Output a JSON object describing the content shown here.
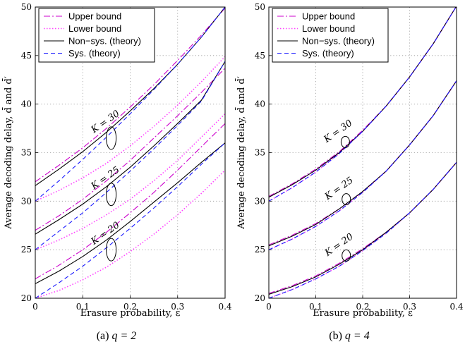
{
  "chart_data": [
    {
      "type": "line",
      "caption": "(a) q = 2",
      "caption_prefix": "(a)",
      "caption_math": "q = 2",
      "xlabel": "Erasure probability, ε",
      "ylabel": "Average decoding delay, d̄ and d̄′",
      "xlim": [
        0,
        0.4
      ],
      "ylim": [
        20,
        50
      ],
      "xticks": [
        "0",
        "0.1",
        "0.2",
        "0.3",
        "0.4"
      ],
      "yticks": [
        "20",
        "25",
        "30",
        "35",
        "40",
        "45",
        "50"
      ],
      "grid": true,
      "legend_position": "top-left",
      "legend": [
        "Upper bound",
        "Lower bound",
        "Non−sys. (theory)",
        "Sys. (theory)"
      ],
      "x": [
        0,
        0.05,
        0.1,
        0.15,
        0.2,
        0.25,
        0.3,
        0.35,
        0.4
      ],
      "groups": [
        {
          "label": "K = 20",
          "label_x": 0.16,
          "label_y": 25.0,
          "upper": [
            22.0,
            23.4,
            25.0,
            26.8,
            28.8,
            30.9,
            33.2,
            35.6,
            38.0
          ],
          "lower": [
            20.0,
            20.8,
            21.9,
            23.2,
            24.8,
            26.6,
            28.6,
            30.8,
            33.2
          ],
          "nonsys": [
            21.5,
            22.8,
            24.3,
            26.0,
            27.9,
            29.9,
            31.9,
            34.0,
            36.0
          ],
          "sys": [
            20.0,
            21.6,
            23.3,
            25.2,
            27.2,
            29.3,
            31.5,
            33.8,
            36.0
          ]
        },
        {
          "label": "K = 25",
          "label_x": 0.16,
          "label_y": 30.7,
          "upper": [
            27.0,
            28.5,
            30.2,
            32.1,
            34.2,
            36.5,
            38.8,
            41.2,
            43.7
          ],
          "lower": [
            25.0,
            26.0,
            27.2,
            28.6,
            30.2,
            32.1,
            34.2,
            36.6,
            39.0
          ],
          "nonsys": [
            26.6,
            28.1,
            29.7,
            31.5,
            33.5,
            35.7,
            38.0,
            40.4,
            44.4
          ],
          "sys": [
            25.0,
            26.9,
            28.8,
            30.9,
            33.1,
            35.4,
            37.8,
            40.3,
            44.4
          ]
        },
        {
          "label": "K = 30",
          "label_x": 0.16,
          "label_y": 36.5,
          "upper": [
            32.0,
            33.7,
            35.5,
            37.5,
            39.7,
            42.0,
            44.5,
            47.1,
            49.9
          ],
          "lower": [
            30.0,
            31.1,
            32.4,
            33.9,
            35.7,
            37.7,
            39.9,
            42.3,
            44.9
          ],
          "nonsys": [
            31.6,
            33.3,
            35.1,
            37.1,
            39.3,
            41.6,
            44.1,
            46.9,
            50.0
          ],
          "sys": [
            30.0,
            32.1,
            34.3,
            36.6,
            39.0,
            41.5,
            44.1,
            46.9,
            50.0
          ]
        }
      ]
    },
    {
      "type": "line",
      "caption": "(b) q = 4",
      "caption_prefix": "(b)",
      "caption_math": "q = 4",
      "xlabel": "Erasure probability, ε",
      "ylabel": "Average decoding delay, d̄ and d̄′",
      "xlim": [
        0,
        0.4
      ],
      "ylim": [
        20,
        50
      ],
      "xticks": [
        "0",
        "0.1",
        "0.2",
        "0.3",
        "0.4"
      ],
      "yticks": [
        "20",
        "25",
        "30",
        "35",
        "40",
        "45",
        "50"
      ],
      "grid": true,
      "legend_position": "top-left",
      "legend": [
        "Upper bound",
        "Lower bound",
        "Non−sys. (theory)",
        "Sys. (theory)"
      ],
      "x": [
        0,
        0.05,
        0.1,
        0.15,
        0.2,
        0.25,
        0.3,
        0.35,
        0.4
      ],
      "groups": [
        {
          "label": "K = 20",
          "label_x": 0.165,
          "label_y": 24.4,
          "upper": [
            20.5,
            21.3,
            22.3,
            23.6,
            25.1,
            26.8,
            28.8,
            31.2,
            34.0
          ],
          "lower": [
            20.0,
            20.9,
            22.0,
            23.3,
            24.9,
            26.7,
            28.8,
            31.2,
            34.0
          ],
          "nonsys": [
            20.4,
            21.2,
            22.2,
            23.5,
            25.0,
            26.8,
            28.8,
            31.2,
            34.0
          ],
          "sys": [
            20.0,
            20.9,
            22.0,
            23.3,
            24.9,
            26.7,
            28.8,
            31.2,
            34.0
          ]
        },
        {
          "label": "K = 25",
          "label_x": 0.165,
          "label_y": 30.2,
          "upper": [
            25.5,
            26.5,
            27.7,
            29.2,
            31.0,
            33.1,
            35.8,
            38.8,
            42.4
          ],
          "lower": [
            25.0,
            26.1,
            27.4,
            29.0,
            30.9,
            33.1,
            35.8,
            38.8,
            42.4
          ],
          "nonsys": [
            25.4,
            26.4,
            27.6,
            29.2,
            31.0,
            33.1,
            35.8,
            38.8,
            42.4
          ],
          "sys": [
            25.0,
            26.1,
            27.4,
            29.0,
            30.9,
            33.1,
            35.8,
            38.8,
            42.4
          ]
        },
        {
          "label": "K = 30",
          "label_x": 0.163,
          "label_y": 36.1,
          "upper": [
            30.5,
            31.8,
            33.3,
            35.1,
            37.3,
            39.8,
            42.8,
            46.2,
            50.1
          ],
          "lower": [
            30.0,
            31.4,
            33.0,
            34.9,
            37.2,
            39.8,
            42.8,
            46.2,
            50.1
          ],
          "nonsys": [
            30.4,
            31.7,
            33.2,
            35.0,
            37.2,
            39.8,
            42.8,
            46.2,
            50.1
          ],
          "sys": [
            30.0,
            31.4,
            33.0,
            34.9,
            37.2,
            39.8,
            42.8,
            46.2,
            50.1
          ]
        }
      ]
    }
  ],
  "styles": {
    "upper": "#cc00cc",
    "lower": "#ff44ff",
    "nonsys": "#000000",
    "sys": "#1a1aff",
    "grid": "#9a9a9a"
  }
}
